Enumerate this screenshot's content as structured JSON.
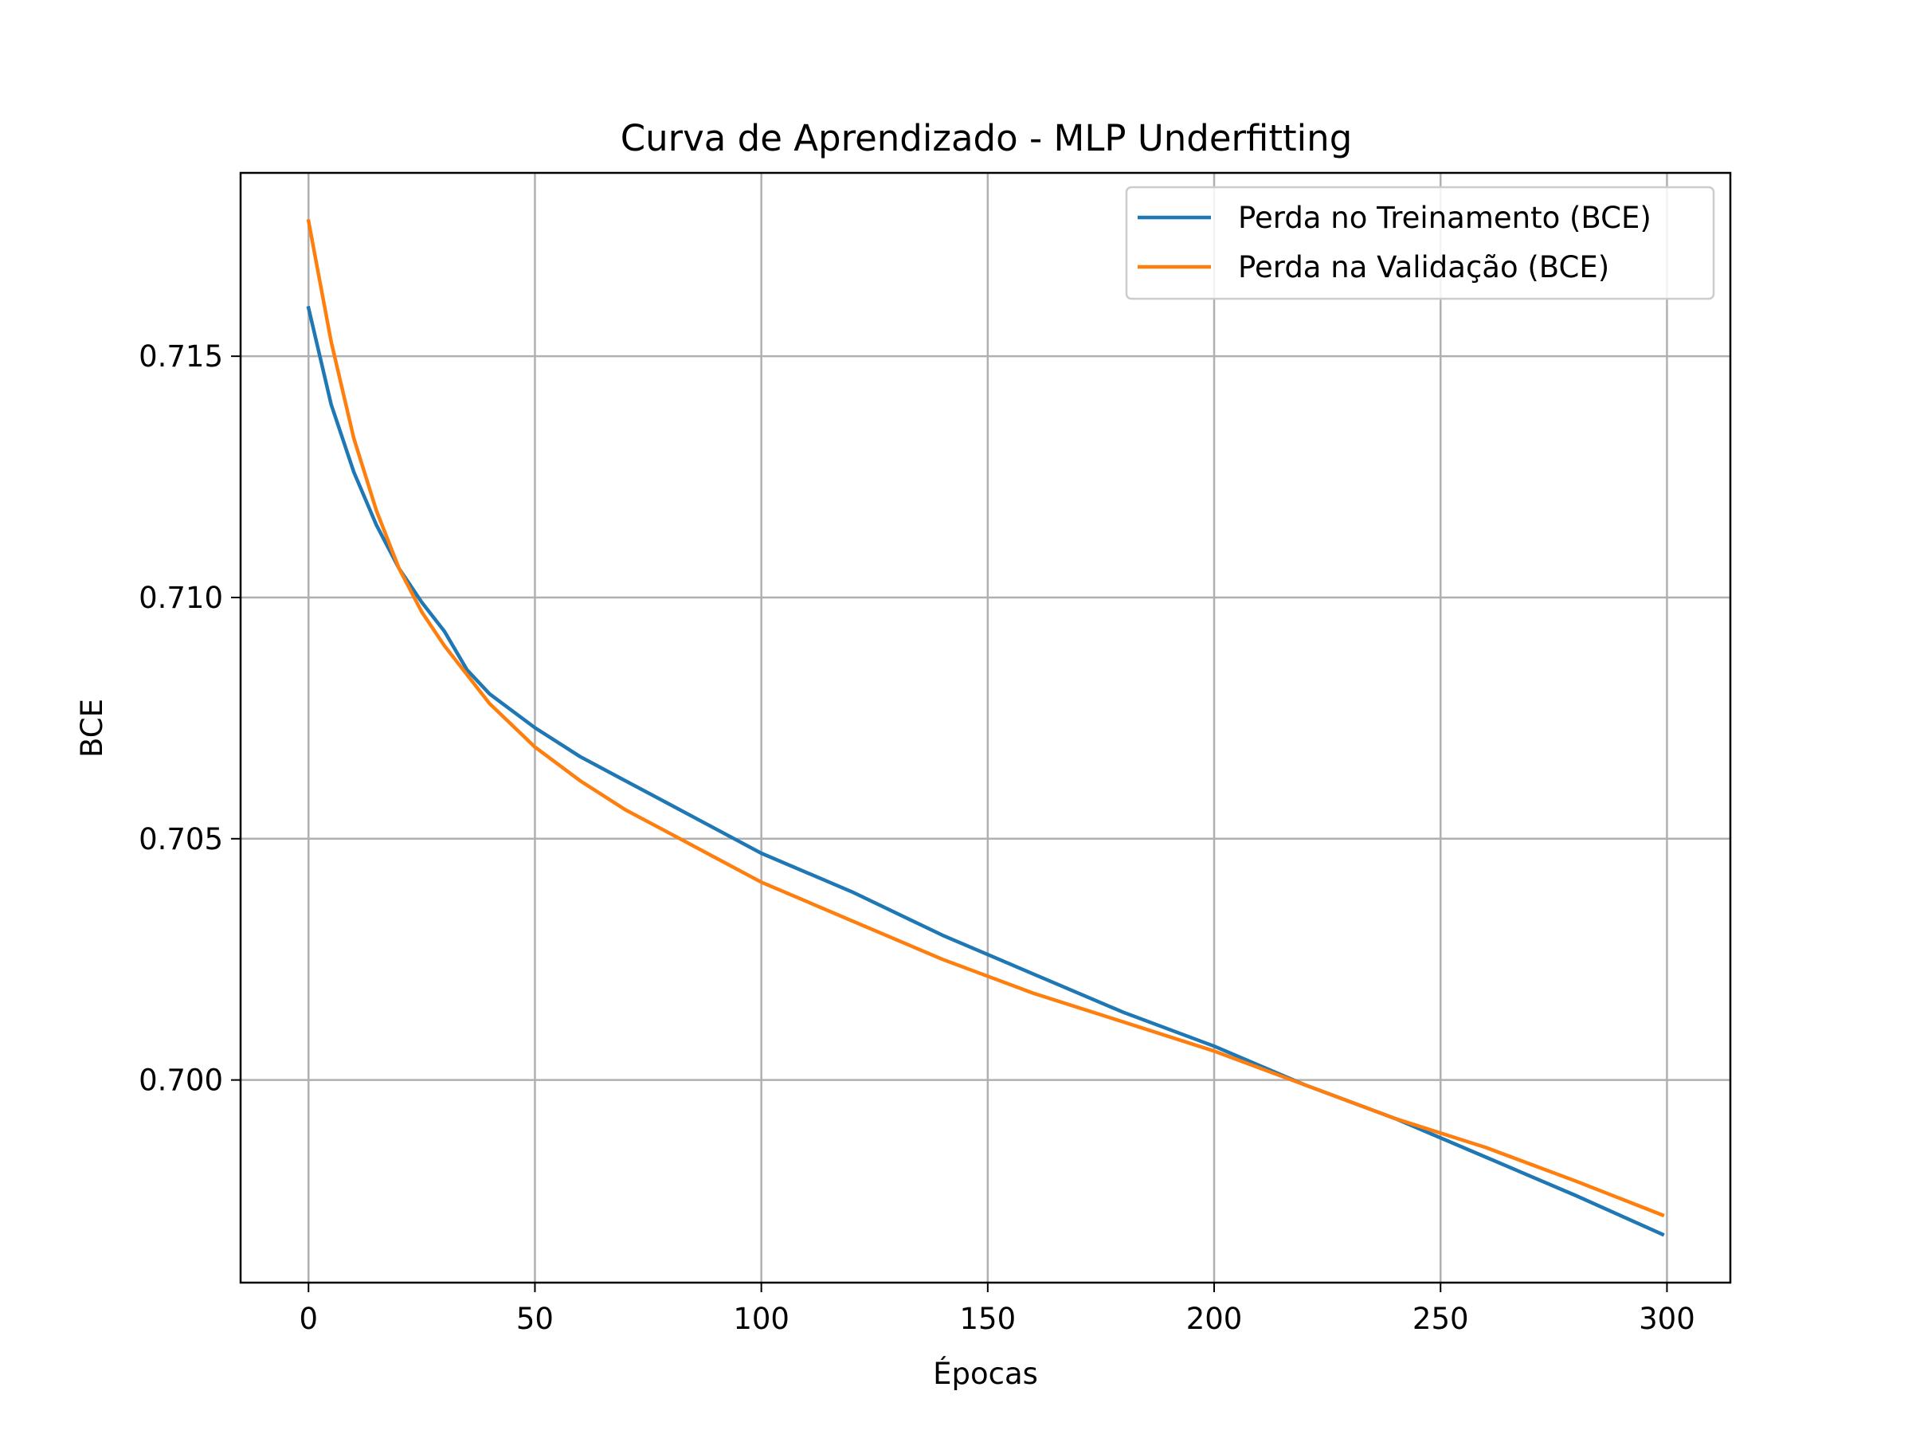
{
  "chart_data": {
    "type": "line",
    "title": "Curva de Aprendizado - MLP Underfitting",
    "xlabel": "Épocas",
    "ylabel": "BCE",
    "xlim": [
      -15,
      314
    ],
    "ylim": [
      0.6958,
      0.7188
    ],
    "xticks": [
      0,
      50,
      100,
      150,
      200,
      250,
      300
    ],
    "xtick_labels": [
      "0",
      "50",
      "100",
      "150",
      "200",
      "250",
      "300"
    ],
    "yticks": [
      0.7,
      0.705,
      0.71,
      0.715
    ],
    "ytick_labels": [
      "0.700",
      "0.705",
      "0.710",
      "0.715"
    ],
    "grid": true,
    "legend_position": "top-right",
    "series": [
      {
        "name": "Perda no Treinamento (BCE)",
        "color": "#1f77b4",
        "x": [
          0,
          5,
          10,
          15,
          20,
          25,
          30,
          35,
          40,
          50,
          60,
          70,
          80,
          90,
          100,
          120,
          140,
          160,
          180,
          200,
          220,
          240,
          260,
          280,
          299
        ],
        "y": [
          0.716,
          0.714,
          0.7126,
          0.7115,
          0.7106,
          0.7099,
          0.7093,
          0.7085,
          0.708,
          0.7073,
          0.7067,
          0.7062,
          0.7057,
          0.7052,
          0.7047,
          0.7039,
          0.703,
          0.7022,
          0.7014,
          0.7007,
          0.6999,
          0.6992,
          0.6984,
          0.6976,
          0.6968
        ]
      },
      {
        "name": "Perda na Validação (BCE)",
        "color": "#ff7f0e",
        "x": [
          0,
          5,
          10,
          15,
          20,
          25,
          30,
          35,
          40,
          50,
          60,
          70,
          80,
          90,
          100,
          120,
          140,
          160,
          180,
          200,
          220,
          240,
          260,
          280,
          299
        ],
        "y": [
          0.7178,
          0.7153,
          0.7133,
          0.7118,
          0.7106,
          0.7097,
          0.709,
          0.7084,
          0.7078,
          0.7069,
          0.7062,
          0.7056,
          0.7051,
          0.7046,
          0.7041,
          0.7033,
          0.7025,
          0.7018,
          0.7012,
          0.7006,
          0.6999,
          0.6992,
          0.6986,
          0.6979,
          0.6972
        ]
      }
    ]
  }
}
